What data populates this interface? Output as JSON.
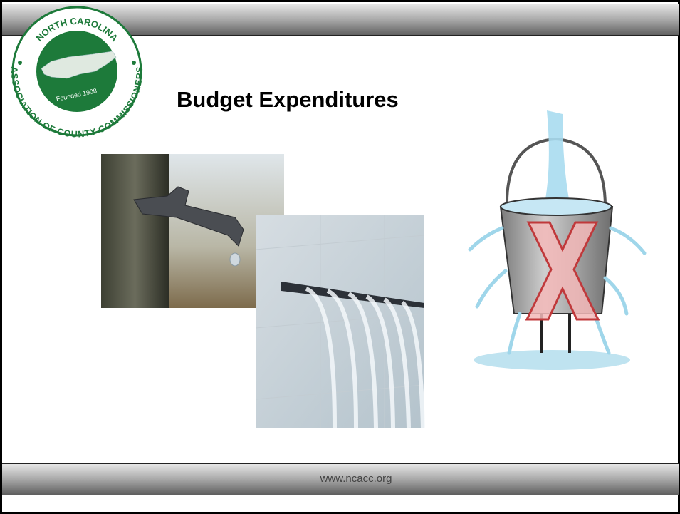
{
  "logo": {
    "top_text": "NORTH CAROLINA",
    "bottom_text": "ASSOCIATION OF COUNTY COMMISSIONERS",
    "founded": "Founded 1908"
  },
  "title": "Budget Expenditures",
  "footer": "www.ncacc.org"
}
